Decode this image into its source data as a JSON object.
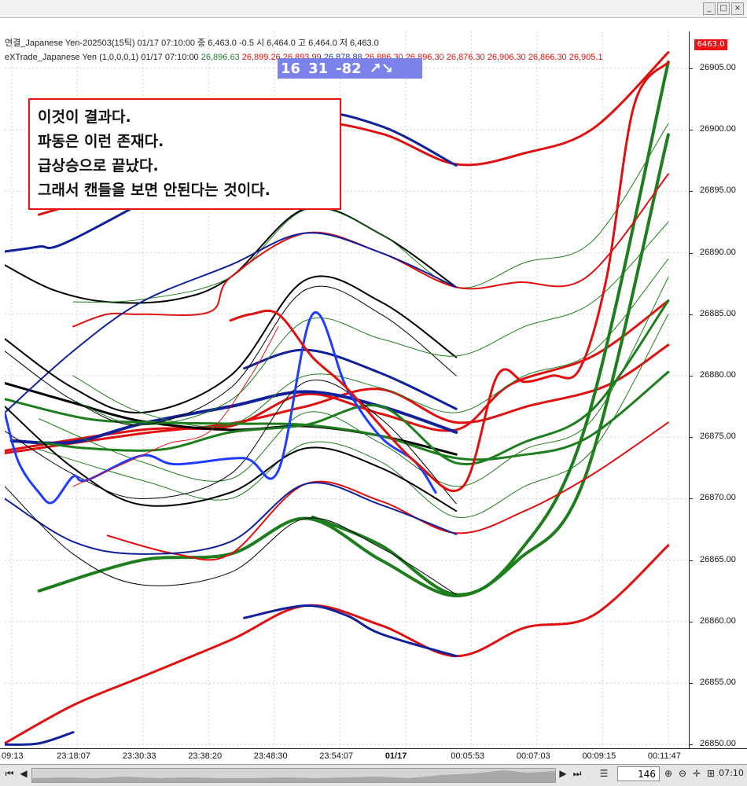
{
  "window": {
    "min_glyph": "_",
    "max_glyph": "□",
    "close_glyph": "×"
  },
  "header": {
    "line1": "연결_Japanese Yen-202503(15틱) 01/17 07:10:00   종 6,463.0 -0.5   시 6,464.0 고 6,464.0 저 6,463.0",
    "line2_prefix": "eXTrade_Japanese Yen  (1,0,0,0,1) 01/17 07:10:00",
    "line2_values": [
      "26,896.63",
      "26,899.26",
      "26,893.99",
      "26,878.88",
      "26,886.30",
      "26,896.30",
      "26,876.30",
      "26,906.30",
      "26,866.30",
      "26,905.1"
    ],
    "line2_colors": [
      "green",
      "red",
      "red",
      "blue",
      "red",
      "red",
      "red",
      "red",
      "red",
      "red"
    ]
  },
  "badge": {
    "v1": "16",
    "v2": "31",
    "v3": "-82",
    "arrows": "↗↘"
  },
  "annotation": {
    "lines": [
      "이것이 결과다.",
      "파동은 이런 존재다.",
      "급상승으로 끝났다.",
      "그래서 캔들을 보면 안된다는 것이다."
    ]
  },
  "price_tag": "6463.0",
  "zoom": "146",
  "toolbar_icons": [
    "pencil-icon",
    "chart-icon",
    "settings-icon",
    "plus-icon",
    "minus-icon",
    "crosshair-icon",
    "fit-icon"
  ],
  "time_label": "07:10",
  "chart_data": {
    "type": "line",
    "x_ticks": [
      "09:13",
      "23:18:07",
      "23:30:33",
      "23:38:20",
      "23:48:30",
      "23:54:07",
      "01/17",
      "00:05:53",
      "00:07:03",
      "00:09:15",
      "00:11:47"
    ],
    "y_ticks": [
      26850,
      26855,
      26860,
      26865,
      26870,
      26875,
      26880,
      26885,
      26890,
      26895,
      26900,
      26905
    ],
    "ylim": [
      26849.7,
      26908
    ],
    "colors": {
      "green": "#1e7e1e",
      "red": "#e01010",
      "blue": "#11219a",
      "black": "#000000",
      "bright_blue": "#1f3cff"
    },
    "series": [
      {
        "color": "red",
        "w": 3,
        "x": [
          0,
          0.2,
          0.33,
          0.44,
          0.55,
          0.66,
          0.77,
          0.88,
          0.97
        ],
        "y": [
          26873.7,
          26875.3,
          26876.1,
          26877.5,
          26878.9,
          26876.2,
          26877.6,
          26879.2,
          26882.5
        ]
      },
      {
        "color": "red",
        "w": 3,
        "x": [
          0,
          0.2,
          0.33,
          0.44,
          0.55,
          0.66,
          0.74,
          0.86,
          0.97
        ],
        "y": [
          26873.9,
          26875.6,
          26875.9,
          26878.5,
          26876.9,
          26875.6,
          26879.3,
          26881.6,
          26886.1
        ]
      },
      {
        "color": "blue",
        "w": 4,
        "x": [
          0.01,
          0.1,
          0.2,
          0.33,
          0.44,
          0.55,
          0.66
        ],
        "y": [
          26874.7,
          26874.6,
          26876.1,
          26877.5,
          26878.7,
          26877.5,
          26875.4
        ]
      },
      {
        "color": "blue",
        "w": 3,
        "x": [
          0.35,
          0.44,
          0.55,
          0.66
        ],
        "y": [
          26880.6,
          26882.1,
          26880.2,
          26877.3
        ]
      },
      {
        "color": "black",
        "w": 3,
        "x": [
          0,
          0.1,
          0.2,
          0.33,
          0.44,
          0.55,
          0.66
        ],
        "y": [
          26879.4,
          26877.8,
          26876.3,
          26875.6,
          26875.9,
          26875.1,
          26873.6
        ]
      },
      {
        "color": "green",
        "w": 3,
        "x": [
          0,
          0.12,
          0.22,
          0.33,
          0.44,
          0.55,
          0.66,
          0.75,
          0.85,
          0.97
        ],
        "y": [
          26878.1,
          26876.5,
          26876.2,
          26876.1,
          26876.0,
          26875.1,
          26873.3,
          26873.5,
          26874.9,
          26880.3
        ]
      },
      {
        "color": "green",
        "w": 3,
        "x": [
          0.05,
          0.12,
          0.23,
          0.33,
          0.44,
          0.55,
          0.66,
          0.76,
          0.86,
          0.97
        ],
        "y": [
          26874.6,
          26874.1,
          26874.0,
          26875.4,
          26876.0,
          26877.5,
          26872.9,
          26874.6,
          26877.3,
          26886.1
        ]
      },
      {
        "color": "green",
        "w": 4,
        "x": [
          0.05,
          0.2,
          0.33,
          0.44,
          0.55,
          0.66,
          0.75,
          0.85,
          0.97
        ],
        "y": [
          26862.5,
          26865.0,
          26865.5,
          26868.4,
          26865.0,
          26862.1,
          26865.0,
          26872.0,
          26899.6
        ]
      },
      {
        "color": "green",
        "w": 4,
        "x": [
          0.45,
          0.55,
          0.66,
          0.75,
          0.85,
          0.97
        ],
        "y": [
          26868.5,
          26866.2,
          26862.2,
          26865.5,
          26876.1,
          26905.5
        ]
      },
      {
        "color": "red",
        "w": 3,
        "x": [
          0,
          0.1,
          0.2,
          0.33,
          0.44,
          0.55,
          0.66,
          0.76,
          0.86,
          0.97
        ],
        "y": [
          26850.1,
          26853.2,
          26855.5,
          26858.5,
          26861.3,
          26859.7,
          26857.2,
          26859.5,
          26860.5,
          26866.2
        ]
      },
      {
        "color": "blue",
        "w": 3,
        "x": [
          0.35,
          0.44,
          0.5,
          0.55,
          0.66
        ],
        "y": [
          26860.3,
          26861.3,
          26860.5,
          26859.0,
          26857.2
        ]
      },
      {
        "color": "blue",
        "w": 3,
        "x": [
          0,
          0.05,
          0.1
        ],
        "y": [
          26850.0,
          26850.1,
          26851.0
        ]
      },
      {
        "color": "red",
        "w": 3,
        "x": [
          0.05,
          0.2,
          0.33,
          0.44,
          0.55,
          0.66,
          0.76,
          0.86,
          0.97
        ],
        "y": [
          26893.1,
          26895.5,
          26897.2,
          26900.4,
          26899.7,
          26897.2,
          26898.1,
          26900.1,
          26906.3
        ]
      },
      {
        "color": "blue",
        "w": 3,
        "x": [
          0,
          0.05,
          0.1,
          0.33,
          0.44,
          0.55,
          0.66
        ],
        "y": [
          26890.1,
          26890.5,
          26891.1,
          26898.0,
          26901.3,
          26900.3,
          26897.1
        ]
      },
      {
        "color": "black",
        "w": 2,
        "x": [
          0,
          0.07,
          0.15,
          0.25,
          0.33,
          0.44,
          0.55,
          0.66
        ],
        "y": [
          26889.0,
          26887.0,
          26886.0,
          26886.2,
          26888.0,
          26893.6,
          26891.5,
          26887.2
        ]
      },
      {
        "color": "green",
        "w": 1,
        "x": [
          0.1,
          0.2,
          0.33,
          0.44,
          0.55,
          0.66,
          0.76,
          0.86,
          0.97
        ],
        "y": [
          26886.0,
          26886.2,
          26888.0,
          26893.5,
          26891.5,
          26887.2,
          26889.2,
          26891.0,
          26900.5
        ]
      },
      {
        "color": "red",
        "w": 2,
        "x": [
          0.1,
          0.15,
          0.2,
          0.3,
          0.33,
          0.44,
          0.55,
          0.66,
          0.75,
          0.85,
          0.97
        ],
        "y": [
          26884.0,
          26885.0,
          26885.0,
          26885.2,
          26888.0,
          26891.6,
          26890.0,
          26887.2,
          26887.6,
          26888.0,
          26896.4
        ]
      },
      {
        "color": "blue",
        "w": 2,
        "x": [
          0,
          0.1,
          0.2,
          0.33,
          0.44,
          0.55,
          0.66
        ],
        "y": [
          26877.0,
          26882.0,
          26886.0,
          26889.0,
          26891.6,
          26890.0,
          26887.2
        ]
      },
      {
        "color": "black",
        "w": 2,
        "x": [
          0,
          0.1,
          0.2,
          0.33,
          0.44,
          0.55,
          0.66
        ],
        "y": [
          26883.0,
          26879.0,
          26877.0,
          26880.0,
          26887.8,
          26886.0,
          26881.5
        ]
      },
      {
        "color": "black",
        "w": 1,
        "x": [
          0,
          0.1,
          0.2,
          0.33,
          0.44,
          0.55,
          0.66
        ],
        "y": [
          26882.0,
          26878.0,
          26876.0,
          26879.0,
          26887.0,
          26885.0,
          26880.0
        ]
      },
      {
        "color": "green",
        "w": 1,
        "x": [
          0.1,
          0.2,
          0.33,
          0.44,
          0.55,
          0.66,
          0.76,
          0.86,
          0.97
        ],
        "y": [
          26878.0,
          26876.0,
          26878.0,
          26884.5,
          26883.0,
          26881.6,
          26884.0,
          26886.0,
          26892.5
        ]
      },
      {
        "color": "green",
        "w": 1,
        "x": [
          0.1,
          0.2,
          0.33,
          0.44,
          0.55,
          0.66,
          0.76,
          0.86,
          0.97
        ],
        "y": [
          26880.0,
          26877.0,
          26876.0,
          26880.0,
          26879.0,
          26877.0,
          26880.0,
          26882.0,
          26889.5
        ]
      },
      {
        "color": "green",
        "w": 1,
        "x": [
          0.05,
          0.2,
          0.33,
          0.44,
          0.55,
          0.66,
          0.76,
          0.86,
          0.97
        ],
        "y": [
          26876.5,
          26873.0,
          26871.6,
          26877.0,
          26874.5,
          26871.0,
          26874.0,
          26876.5,
          26888.0
        ]
      },
      {
        "color": "green",
        "w": 1,
        "x": [
          0.05,
          0.2,
          0.33,
          0.44,
          0.55,
          0.66,
          0.76,
          0.86,
          0.97
        ],
        "y": [
          26874.0,
          26871.5,
          26870.0,
          26874.5,
          26873.0,
          26868.5,
          26871.0,
          26874.0,
          26885.0
        ]
      },
      {
        "color": "black",
        "w": 1,
        "x": [
          0,
          0.1,
          0.2,
          0.33,
          0.44,
          0.55,
          0.66
        ],
        "y": [
          26875.5,
          26872.0,
          26870.0,
          26872.0,
          26879.5,
          26876.5,
          26869.6
        ]
      },
      {
        "color": "black",
        "w": 2,
        "x": [
          0,
          0.1,
          0.2,
          0.33,
          0.44,
          0.55,
          0.66
        ],
        "y": [
          26877.5,
          26872.5,
          26869.5,
          26870.5,
          26874.1,
          26872.5,
          26869.0
        ]
      },
      {
        "color": "red",
        "w": 2,
        "x": [
          0.15,
          0.25,
          0.33,
          0.44,
          0.55,
          0.66,
          0.76,
          0.86,
          0.97
        ],
        "y": [
          26867.0,
          26865.5,
          26865.5,
          26871.2,
          26869.8,
          26867.2,
          26869.0,
          26872.0,
          26876.2
        ]
      },
      {
        "color": "blue",
        "w": 2,
        "x": [
          0,
          0.1,
          0.2,
          0.33,
          0.44,
          0.55,
          0.66
        ],
        "y": [
          26870.0,
          26866.5,
          26865.5,
          26866.5,
          26871.2,
          26869.5,
          26867.1
        ]
      },
      {
        "color": "black",
        "w": 1,
        "x": [
          0,
          0.1,
          0.2,
          0.33,
          0.44,
          0.55,
          0.66
        ],
        "y": [
          26871.0,
          26865.5,
          26863.0,
          26864.0,
          26868.4,
          26866.0,
          26862.2
        ]
      },
      {
        "color": "bright_blue",
        "w": 3,
        "x": [
          0,
          0.02,
          0.05,
          0.07,
          0.1,
          0.12,
          0.2,
          0.25,
          0.35,
          0.4,
          0.45,
          0.5,
          0.55,
          0.6,
          0.63
        ],
        "y": [
          26877.0,
          26873.0,
          26870.5,
          26869.7,
          26871.8,
          26871.5,
          26873.5,
          26872.8,
          26873.3,
          26872.3,
          26885.0,
          26879.0,
          26875.0,
          26873.0,
          26870.5
        ]
      },
      {
        "color": "red",
        "w": 3,
        "x": [
          0.33,
          0.36,
          0.4,
          0.45,
          0.5,
          0.6,
          0.67,
          0.72,
          0.76,
          0.8,
          0.84,
          0.88,
          0.92,
          0.97
        ],
        "y": [
          26884.5,
          26885.0,
          26885.0,
          26881.5,
          26879.0,
          26873.0,
          26871.0,
          26880.0,
          26879.5,
          26880.0,
          26880.5,
          26888.0,
          26902.0,
          26905.5
        ]
      },
      {
        "color": "red",
        "w": 1,
        "x": [
          0.1,
          0.2,
          0.24,
          0.3,
          0.36,
          0.4
        ],
        "y": [
          26871.0,
          26873.5,
          26874.5,
          26875.5,
          26880.0,
          26884.0
        ]
      }
    ]
  }
}
